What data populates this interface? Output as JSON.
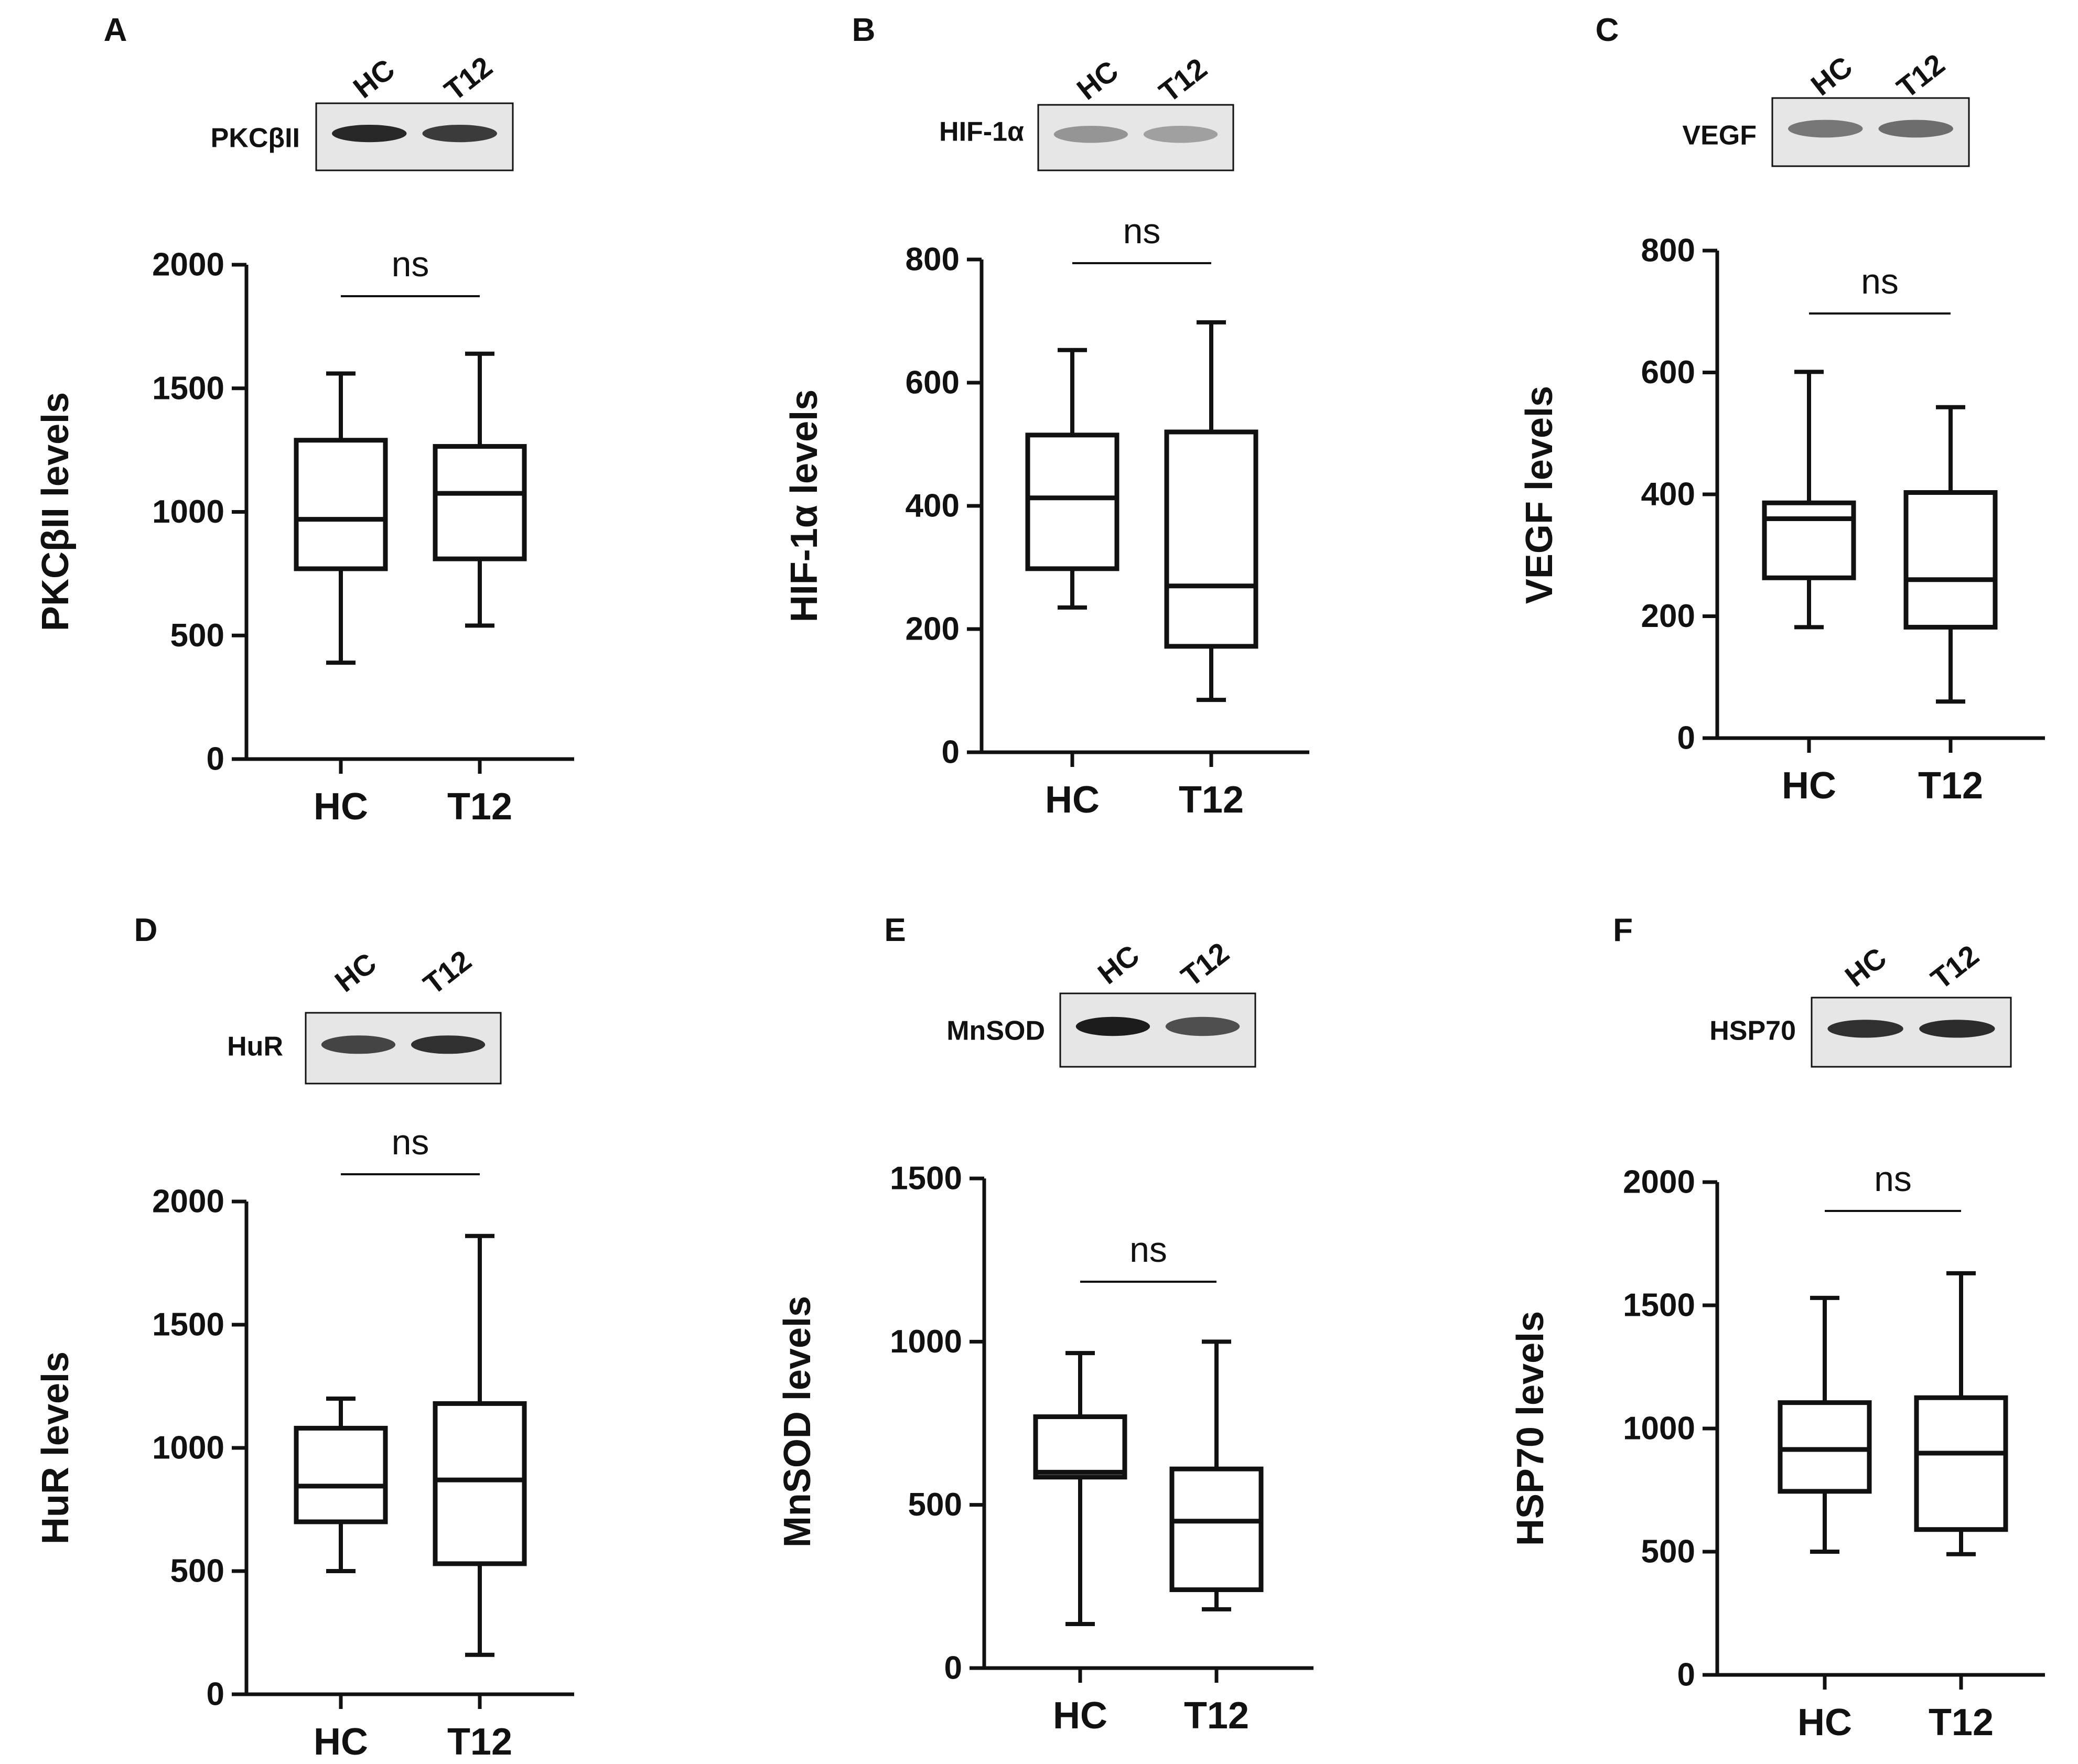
{
  "colors": {
    "ink": "#111111",
    "blot_bg": "#e6e6e6",
    "band": "#1c1c1c"
  },
  "chart_data": [
    {
      "panel": "A",
      "type": "box",
      "protein": "PKCβII",
      "ylabel": "PKCβII levels",
      "lanes": [
        "HC",
        "T12"
      ],
      "categories": [
        "HC",
        "T12"
      ],
      "yticks": [
        "0",
        "500",
        "1000",
        "1500",
        "2000"
      ],
      "ylim": [
        0,
        2000
      ],
      "significance": "ns",
      "boxes": [
        {
          "name": "HC",
          "min": 390,
          "q1": 770,
          "median": 970,
          "q3": 1290,
          "max": 1560
        },
        {
          "name": "T12",
          "min": 540,
          "q1": 810,
          "median": 1075,
          "q3": 1265,
          "max": 1640
        }
      ],
      "band_intensity": [
        0.95,
        0.85
      ]
    },
    {
      "panel": "B",
      "type": "box",
      "protein": "HIF-1α",
      "ylabel": "HIF-1α levels",
      "lanes": [
        "HC",
        "T12"
      ],
      "categories": [
        "HC",
        "T12"
      ],
      "yticks": [
        "0",
        "200",
        "400",
        "600",
        "800"
      ],
      "ylim": [
        0,
        800
      ],
      "significance": "ns",
      "boxes": [
        {
          "name": "HC",
          "min": 235,
          "q1": 298,
          "median": 413,
          "q3": 515,
          "max": 653
        },
        {
          "name": "T12",
          "min": 85,
          "q1": 172,
          "median": 270,
          "q3": 520,
          "max": 698
        }
      ],
      "band_intensity": [
        0.4,
        0.35
      ]
    },
    {
      "panel": "C",
      "type": "box",
      "protein": "VEGF",
      "ylabel": "VEGF levels",
      "lanes": [
        "HC",
        "T12"
      ],
      "categories": [
        "HC",
        "T12"
      ],
      "yticks": [
        "0",
        "200",
        "400",
        "600",
        "800"
      ],
      "ylim": [
        0,
        800
      ],
      "significance": "ns",
      "boxes": [
        {
          "name": "HC",
          "min": 182,
          "q1": 263,
          "median": 360,
          "q3": 386,
          "max": 601
        },
        {
          "name": "T12",
          "min": 60,
          "q1": 182,
          "median": 260,
          "q3": 403,
          "max": 543
        }
      ],
      "band_intensity": [
        0.55,
        0.6
      ]
    },
    {
      "panel": "D",
      "type": "box",
      "protein": "HuR",
      "ylabel": "HuR levels",
      "lanes": [
        "HC",
        "T12"
      ],
      "categories": [
        "HC",
        "T12"
      ],
      "yticks": [
        "0",
        "500",
        "1000",
        "1500",
        "2000"
      ],
      "ylim": [
        0,
        2000
      ],
      "significance": "ns",
      "boxes": [
        {
          "name": "HC",
          "min": 500,
          "q1": 700,
          "median": 845,
          "q3": 1080,
          "max": 1200
        },
        {
          "name": "T12",
          "min": 160,
          "q1": 530,
          "median": 870,
          "q3": 1180,
          "max": 1860
        }
      ],
      "band_intensity": [
        0.8,
        0.9
      ]
    },
    {
      "panel": "E",
      "type": "box",
      "protein": "MnSOD",
      "ylabel": "MnSOD levels",
      "lanes": [
        "HC",
        "T12"
      ],
      "categories": [
        "HC",
        "T12"
      ],
      "yticks": [
        "0",
        "500",
        "1000",
        "1500"
      ],
      "ylim": [
        0,
        1500
      ],
      "significance": "ns",
      "boxes": [
        {
          "name": "HC",
          "min": 135,
          "q1": 585,
          "median": 600,
          "q3": 770,
          "max": 965
        },
        {
          "name": "T12",
          "min": 180,
          "q1": 240,
          "median": 450,
          "q3": 610,
          "max": 1000
        }
      ],
      "band_intensity": [
        1.0,
        0.75
      ]
    },
    {
      "panel": "F",
      "type": "box",
      "protein": "HSP70",
      "ylabel": "HSP70 levels",
      "lanes": [
        "HC",
        "T12"
      ],
      "categories": [
        "HC",
        "T12"
      ],
      "yticks": [
        "0",
        "500",
        "1000",
        "1500",
        "2000"
      ],
      "ylim": [
        0,
        2000
      ],
      "significance": "ns",
      "boxes": [
        {
          "name": "HC",
          "min": 500,
          "q1": 745,
          "median": 915,
          "q3": 1105,
          "max": 1530
        },
        {
          "name": "T12",
          "min": 490,
          "q1": 590,
          "median": 900,
          "q3": 1125,
          "max": 1630
        }
      ],
      "band_intensity": [
        0.9,
        0.92
      ]
    }
  ]
}
